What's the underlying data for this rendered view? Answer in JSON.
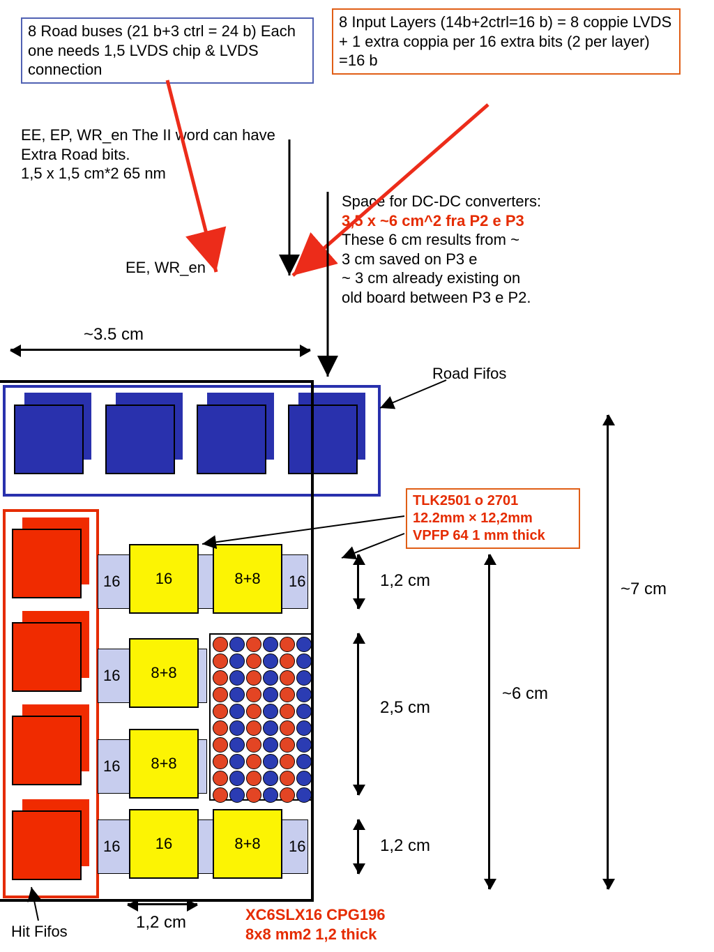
{
  "colors": {
    "blueBox": "#5061b3",
    "orangeBox": "#e05e16",
    "redBox": "#e52b00",
    "redFill": "#f02b00",
    "blueFill": "#2931ad",
    "yellowFill": "#fcf403",
    "lilacFill": "#c7cdee",
    "dotRed": "#e34524",
    "dotBlue": "#2b3cb3",
    "arrowRed": "#ec2c1a"
  },
  "text": {
    "roadBuses": "8 Road buses (21 b+3 ctrl = 24 b) Each one needs 1,5 LVDS chip & LVDS connection",
    "inputLayers": "8 Input Layers (14b+2ctrl=16 b) = 8 coppie LVDS\n+ 1 extra coppia per 16 extra bits (2 per layer) =16 b",
    "eeEp": "EE, EP, WR_en The II word can have Extra Road bits.\n1,5 x 1,5 cm*2 65 nm",
    "eeWr": "EE, WR_en",
    "dcdcHdr": "Space for DC-DC converters:",
    "dcdcRed": "3,5 x ~6 cm^2 fra P2 e P3",
    "dcdcRest": "These 6 cm results from ~\n3 cm saved on P3 e\n~ 3 cm already existing on\nold board between P3 e P2.",
    "tlk": "TLK2501 o 2701\n12.2mm × 12,2mm\nVPFP 64 1 mm thick",
    "xc6": "XC6SLX16  CPG196\n8x8 mm2 1,2 thick",
    "roadFifos": "Road Fifos",
    "hitFifos": "Hit Fifos",
    "dim35": "~3.5   cm",
    "dim12": "1,2 cm",
    "dim25": "2,5 cm",
    "dim6": "~6 cm",
    "dim7": "~7 cm"
  },
  "labels": {
    "n16": "16",
    "n88": "8+8"
  },
  "fonts": {
    "main": 22,
    "small": 20,
    "dim": 24
  },
  "bgaCols": [
    "red",
    "blue",
    "red",
    "blue",
    "red",
    "blue"
  ],
  "bgaRows": 10
}
